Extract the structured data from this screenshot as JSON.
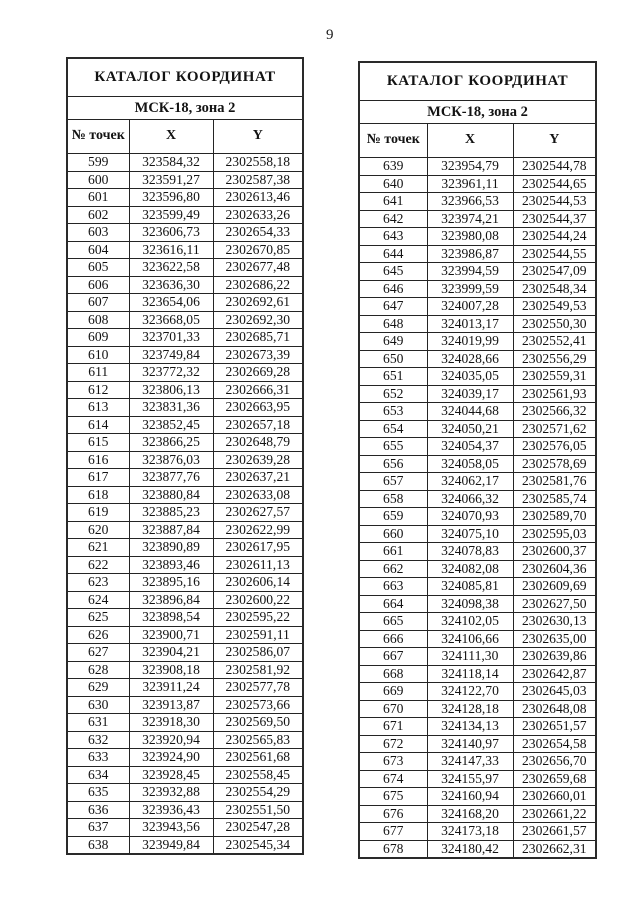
{
  "page_number": "9",
  "tables": [
    {
      "title": "КАТАЛОГ КООРДИНАТ",
      "subtitle": "МСК-18, зона 2",
      "columns": {
        "num": "№\nточек",
        "x": "X",
        "y": "Y"
      },
      "rows": [
        [
          "599",
          "323584,32",
          "2302558,18"
        ],
        [
          "600",
          "323591,27",
          "2302587,38"
        ],
        [
          "601",
          "323596,80",
          "2302613,46"
        ],
        [
          "602",
          "323599,49",
          "2302633,26"
        ],
        [
          "603",
          "323606,73",
          "2302654,33"
        ],
        [
          "604",
          "323616,11",
          "2302670,85"
        ],
        [
          "605",
          "323622,58",
          "2302677,48"
        ],
        [
          "606",
          "323636,30",
          "2302686,22"
        ],
        [
          "607",
          "323654,06",
          "2302692,61"
        ],
        [
          "608",
          "323668,05",
          "2302692,30"
        ],
        [
          "609",
          "323701,33",
          "2302685,71"
        ],
        [
          "610",
          "323749,84",
          "2302673,39"
        ],
        [
          "611",
          "323772,32",
          "2302669,28"
        ],
        [
          "612",
          "323806,13",
          "2302666,31"
        ],
        [
          "613",
          "323831,36",
          "2302663,95"
        ],
        [
          "614",
          "323852,45",
          "2302657,18"
        ],
        [
          "615",
          "323866,25",
          "2302648,79"
        ],
        [
          "616",
          "323876,03",
          "2302639,28"
        ],
        [
          "617",
          "323877,76",
          "2302637,21"
        ],
        [
          "618",
          "323880,84",
          "2302633,08"
        ],
        [
          "619",
          "323885,23",
          "2302627,57"
        ],
        [
          "620",
          "323887,84",
          "2302622,99"
        ],
        [
          "621",
          "323890,89",
          "2302617,95"
        ],
        [
          "622",
          "323893,46",
          "2302611,13"
        ],
        [
          "623",
          "323895,16",
          "2302606,14"
        ],
        [
          "624",
          "323896,84",
          "2302600,22"
        ],
        [
          "625",
          "323898,54",
          "2302595,22"
        ],
        [
          "626",
          "323900,71",
          "2302591,11"
        ],
        [
          "627",
          "323904,21",
          "2302586,07"
        ],
        [
          "628",
          "323908,18",
          "2302581,92"
        ],
        [
          "629",
          "323911,24",
          "2302577,78"
        ],
        [
          "630",
          "323913,87",
          "2302573,66"
        ],
        [
          "631",
          "323918,30",
          "2302569,50"
        ],
        [
          "632",
          "323920,94",
          "2302565,83"
        ],
        [
          "633",
          "323924,90",
          "2302561,68"
        ],
        [
          "634",
          "323928,45",
          "2302558,45"
        ],
        [
          "635",
          "323932,88",
          "2302554,29"
        ],
        [
          "636",
          "323936,43",
          "2302551,50"
        ],
        [
          "637",
          "323943,56",
          "2302547,28"
        ],
        [
          "638",
          "323949,84",
          "2302545,34"
        ]
      ]
    },
    {
      "title": "КАТАЛОГ КООРДИНАТ",
      "subtitle": "МСК-18, зона 2",
      "columns": {
        "num": "№\nточек",
        "x": "X",
        "y": "Y"
      },
      "rows": [
        [
          "639",
          "323954,79",
          "2302544,78"
        ],
        [
          "640",
          "323961,11",
          "2302544,65"
        ],
        [
          "641",
          "323966,53",
          "2302544,53"
        ],
        [
          "642",
          "323974,21",
          "2302544,37"
        ],
        [
          "643",
          "323980,08",
          "2302544,24"
        ],
        [
          "644",
          "323986,87",
          "2302544,55"
        ],
        [
          "645",
          "323994,59",
          "2302547,09"
        ],
        [
          "646",
          "323999,59",
          "2302548,34"
        ],
        [
          "647",
          "324007,28",
          "2302549,53"
        ],
        [
          "648",
          "324013,17",
          "2302550,30"
        ],
        [
          "649",
          "324019,99",
          "2302552,41"
        ],
        [
          "650",
          "324028,66",
          "2302556,29"
        ],
        [
          "651",
          "324035,05",
          "2302559,31"
        ],
        [
          "652",
          "324039,17",
          "2302561,93"
        ],
        [
          "653",
          "324044,68",
          "2302566,32"
        ],
        [
          "654",
          "324050,21",
          "2302571,62"
        ],
        [
          "655",
          "324054,37",
          "2302576,05"
        ],
        [
          "656",
          "324058,05",
          "2302578,69"
        ],
        [
          "657",
          "324062,17",
          "2302581,76"
        ],
        [
          "658",
          "324066,32",
          "2302585,74"
        ],
        [
          "659",
          "324070,93",
          "2302589,70"
        ],
        [
          "660",
          "324075,10",
          "2302595,03"
        ],
        [
          "661",
          "324078,83",
          "2302600,37"
        ],
        [
          "662",
          "324082,08",
          "2302604,36"
        ],
        [
          "663",
          "324085,81",
          "2302609,69"
        ],
        [
          "664",
          "324098,38",
          "2302627,50"
        ],
        [
          "665",
          "324102,05",
          "2302630,13"
        ],
        [
          "666",
          "324106,66",
          "2302635,00"
        ],
        [
          "667",
          "324111,30",
          "2302639,86"
        ],
        [
          "668",
          "324118,14",
          "2302642,87"
        ],
        [
          "669",
          "324122,70",
          "2302645,03"
        ],
        [
          "670",
          "324128,18",
          "2302648,08"
        ],
        [
          "671",
          "324134,13",
          "2302651,57"
        ],
        [
          "672",
          "324140,97",
          "2302654,58"
        ],
        [
          "673",
          "324147,33",
          "2302656,70"
        ],
        [
          "674",
          "324155,97",
          "2302659,68"
        ],
        [
          "675",
          "324160,94",
          "2302660,01"
        ],
        [
          "676",
          "324168,20",
          "2302661,22"
        ],
        [
          "677",
          "324173,18",
          "2302661,57"
        ],
        [
          "678",
          "324180,42",
          "2302662,31"
        ]
      ]
    }
  ]
}
